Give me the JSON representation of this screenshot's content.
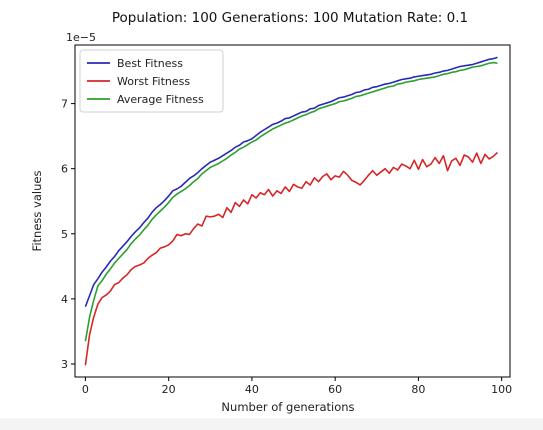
{
  "chart_data": {
    "type": "line",
    "title": "Population: 100 Generations: 100 Mutation Rate: 0.1",
    "xlabel": "Number of generations",
    "ylabel": "Fitness values",
    "y_scale_label": "1e−5",
    "xlim": [
      -2.5,
      102
    ],
    "ylim": [
      2.8,
      7.9
    ],
    "y_multiplier": 1e-05,
    "x_ticks": [
      0,
      20,
      40,
      60,
      80,
      100
    ],
    "y_ticks": [
      3,
      4,
      5,
      6,
      7
    ],
    "x_tick_labels": [
      "0",
      "20",
      "40",
      "60",
      "80",
      "100"
    ],
    "y_tick_labels": [
      "3",
      "4",
      "5",
      "6",
      "7"
    ],
    "grid": false,
    "legend_position": "upper-left",
    "series": [
      {
        "name": "Best Fitness",
        "color": "#2a2ab8",
        "x": [
          0,
          1,
          2,
          3,
          4,
          5,
          6,
          7,
          8,
          9,
          10,
          11,
          12,
          13,
          14,
          15,
          16,
          17,
          18,
          19,
          20,
          21,
          22,
          23,
          24,
          25,
          26,
          27,
          28,
          29,
          30,
          31,
          32,
          33,
          34,
          35,
          36,
          37,
          38,
          39,
          40,
          41,
          42,
          43,
          44,
          45,
          46,
          47,
          48,
          49,
          50,
          51,
          52,
          53,
          54,
          55,
          56,
          57,
          58,
          59,
          60,
          61,
          62,
          63,
          64,
          65,
          66,
          67,
          68,
          69,
          70,
          71,
          72,
          73,
          74,
          75,
          76,
          77,
          78,
          79,
          80,
          81,
          82,
          83,
          84,
          85,
          86,
          87,
          88,
          89,
          90,
          91,
          92,
          93,
          94,
          95,
          96,
          97,
          98,
          99
        ],
        "values": [
          3.88,
          4.05,
          4.22,
          4.31,
          4.41,
          4.49,
          4.58,
          4.65,
          4.74,
          4.81,
          4.88,
          4.96,
          5.03,
          5.09,
          5.17,
          5.24,
          5.33,
          5.4,
          5.45,
          5.51,
          5.58,
          5.66,
          5.69,
          5.73,
          5.79,
          5.85,
          5.89,
          5.94,
          6.0,
          6.05,
          6.1,
          6.13,
          6.16,
          6.2,
          6.24,
          6.28,
          6.33,
          6.36,
          6.41,
          6.43,
          6.46,
          6.51,
          6.56,
          6.6,
          6.64,
          6.68,
          6.7,
          6.73,
          6.77,
          6.78,
          6.81,
          6.84,
          6.87,
          6.88,
          6.92,
          6.93,
          6.97,
          6.99,
          7.01,
          7.03,
          7.06,
          7.09,
          7.1,
          7.12,
          7.14,
          7.17,
          7.18,
          7.21,
          7.22,
          7.25,
          7.26,
          7.28,
          7.3,
          7.31,
          7.33,
          7.35,
          7.37,
          7.38,
          7.39,
          7.41,
          7.42,
          7.43,
          7.44,
          7.45,
          7.47,
          7.48,
          7.5,
          7.51,
          7.53,
          7.55,
          7.57,
          7.58,
          7.59,
          7.6,
          7.62,
          7.64,
          7.66,
          7.68,
          7.69,
          7.71
        ]
      },
      {
        "name": "Worst Fitness",
        "color": "#d62728",
        "x": [
          0,
          1,
          2,
          3,
          4,
          5,
          6,
          7,
          8,
          9,
          10,
          11,
          12,
          13,
          14,
          15,
          16,
          17,
          18,
          19,
          20,
          21,
          22,
          23,
          24,
          25,
          26,
          27,
          28,
          29,
          30,
          31,
          32,
          33,
          34,
          35,
          36,
          37,
          38,
          39,
          40,
          41,
          42,
          43,
          44,
          45,
          46,
          47,
          48,
          49,
          50,
          51,
          52,
          53,
          54,
          55,
          56,
          57,
          58,
          59,
          60,
          61,
          62,
          63,
          64,
          65,
          66,
          67,
          68,
          69,
          70,
          71,
          72,
          73,
          74,
          75,
          76,
          77,
          78,
          79,
          80,
          81,
          82,
          83,
          84,
          85,
          86,
          87,
          88,
          89,
          90,
          91,
          92,
          93,
          94,
          95,
          96,
          97,
          98,
          99
        ],
        "values": [
          2.98,
          3.45,
          3.72,
          3.92,
          4.02,
          4.06,
          4.12,
          4.22,
          4.25,
          4.32,
          4.37,
          4.45,
          4.5,
          4.52,
          4.55,
          4.62,
          4.67,
          4.71,
          4.78,
          4.8,
          4.83,
          4.89,
          4.99,
          4.97,
          5.0,
          4.99,
          5.08,
          5.15,
          5.12,
          5.27,
          5.26,
          5.27,
          5.3,
          5.25,
          5.4,
          5.33,
          5.48,
          5.42,
          5.52,
          5.46,
          5.6,
          5.55,
          5.63,
          5.6,
          5.68,
          5.58,
          5.66,
          5.62,
          5.72,
          5.65,
          5.76,
          5.72,
          5.7,
          5.8,
          5.75,
          5.86,
          5.8,
          5.88,
          5.92,
          5.83,
          5.89,
          5.87,
          5.96,
          5.9,
          5.82,
          5.79,
          5.75,
          5.82,
          5.9,
          5.97,
          5.9,
          5.95,
          6.0,
          5.93,
          6.02,
          5.98,
          6.07,
          6.04,
          6.0,
          6.13,
          5.99,
          6.14,
          6.03,
          6.07,
          6.17,
          6.08,
          6.2,
          5.97,
          6.12,
          6.16,
          6.05,
          6.21,
          6.18,
          6.1,
          6.24,
          6.08,
          6.22,
          6.15,
          6.19,
          6.25
        ]
      },
      {
        "name": "Average Fitness",
        "color": "#2ca02c",
        "x": [
          0,
          1,
          2,
          3,
          4,
          5,
          6,
          7,
          8,
          9,
          10,
          11,
          12,
          13,
          14,
          15,
          16,
          17,
          18,
          19,
          20,
          21,
          22,
          23,
          24,
          25,
          26,
          27,
          28,
          29,
          30,
          31,
          32,
          33,
          34,
          35,
          36,
          37,
          38,
          39,
          40,
          41,
          42,
          43,
          44,
          45,
          46,
          47,
          48,
          49,
          50,
          51,
          52,
          53,
          54,
          55,
          56,
          57,
          58,
          59,
          60,
          61,
          62,
          63,
          64,
          65,
          66,
          67,
          68,
          69,
          70,
          71,
          72,
          73,
          74,
          75,
          76,
          77,
          78,
          79,
          80,
          81,
          82,
          83,
          84,
          85,
          86,
          87,
          88,
          89,
          90,
          91,
          92,
          93,
          94,
          95,
          96,
          97,
          98,
          99
        ],
        "values": [
          3.35,
          3.72,
          3.98,
          4.2,
          4.28,
          4.38,
          4.46,
          4.55,
          4.62,
          4.69,
          4.76,
          4.85,
          4.92,
          4.98,
          5.06,
          5.13,
          5.22,
          5.29,
          5.35,
          5.41,
          5.48,
          5.56,
          5.61,
          5.65,
          5.69,
          5.74,
          5.8,
          5.85,
          5.92,
          5.97,
          6.02,
          6.05,
          6.08,
          6.12,
          6.16,
          6.21,
          6.25,
          6.3,
          6.33,
          6.37,
          6.41,
          6.44,
          6.49,
          6.53,
          6.57,
          6.61,
          6.64,
          6.67,
          6.7,
          6.72,
          6.75,
          6.78,
          6.81,
          6.83,
          6.86,
          6.88,
          6.92,
          6.94,
          6.96,
          6.98,
          7.0,
          7.03,
          7.04,
          7.06,
          7.08,
          7.11,
          7.12,
          7.14,
          7.16,
          7.18,
          7.2,
          7.22,
          7.24,
          7.26,
          7.27,
          7.3,
          7.31,
          7.33,
          7.34,
          7.35,
          7.37,
          7.38,
          7.39,
          7.4,
          7.41,
          7.43,
          7.45,
          7.46,
          7.48,
          7.49,
          7.51,
          7.52,
          7.54,
          7.56,
          7.57,
          7.58,
          7.6,
          7.62,
          7.63,
          7.62
        ]
      }
    ]
  }
}
